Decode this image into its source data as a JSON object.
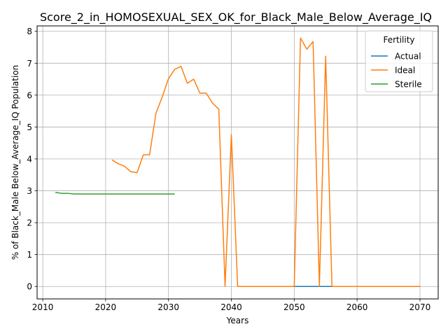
{
  "chart_data": {
    "type": "line",
    "title": "Score_2_in_HOMOSEXUAL_SEX_OK_for_Black_Male_Below_Average_IQ",
    "xlabel": "Years",
    "ylabel": "% of Black_Male Below_Average_IQ Population",
    "xlim": [
      2009.1,
      2072.9
    ],
    "ylim": [
      -0.39,
      8.17
    ],
    "x_ticks": [
      2010,
      2020,
      2030,
      2040,
      2050,
      2060,
      2070
    ],
    "x_tick_labels": [
      "2010",
      "2020",
      "2030",
      "2040",
      "2050",
      "2060",
      "2070"
    ],
    "y_ticks": [
      0,
      1,
      2,
      3,
      4,
      5,
      6,
      7,
      8
    ],
    "y_tick_labels": [
      "0",
      "1",
      "2",
      "3",
      "4",
      "5",
      "6",
      "7",
      "8"
    ],
    "grid": true,
    "legend": {
      "title": "Fertility",
      "placement": "top-right"
    },
    "series": [
      {
        "name": "Actual",
        "color": "#1f77b4",
        "x": [
          2048,
          2049,
          2050,
          2051,
          2052,
          2053,
          2054,
          2055,
          2056
        ],
        "y": [
          0,
          0,
          0,
          0,
          0,
          0,
          0,
          0,
          0
        ]
      },
      {
        "name": "Ideal",
        "color": "#ff7f0e",
        "x": [
          2021,
          2022,
          2023,
          2024,
          2025,
          2026,
          2027,
          2028,
          2029,
          2030,
          2031,
          2032,
          2033,
          2034,
          2035,
          2036,
          2037,
          2038,
          2039,
          2040,
          2041,
          2042,
          2043,
          2044,
          2045,
          2046,
          2047,
          2048,
          2049,
          2050,
          2051,
          2052,
          2053,
          2054,
          2055,
          2056,
          2057,
          2058,
          2059,
          2060,
          2061,
          2062,
          2063,
          2064,
          2065,
          2066,
          2067,
          2068,
          2069,
          2070
        ],
        "y": [
          3.97,
          3.85,
          3.77,
          3.6,
          3.57,
          4.13,
          4.13,
          5.43,
          5.94,
          6.52,
          6.81,
          6.9,
          6.37,
          6.5,
          6.06,
          6.06,
          5.75,
          5.56,
          0,
          4.76,
          0,
          0,
          0,
          0,
          0,
          0,
          0,
          0,
          0,
          0,
          7.79,
          7.44,
          7.68,
          0,
          7.22,
          0,
          0,
          0,
          0,
          0,
          0,
          0,
          0,
          0,
          0,
          0,
          0,
          0,
          0,
          0
        ]
      },
      {
        "name": "Sterile",
        "color": "#2ca02c",
        "x": [
          2012,
          2013,
          2014,
          2015,
          2016,
          2017,
          2018,
          2019,
          2020,
          2021,
          2022,
          2023,
          2024,
          2025,
          2026,
          2027,
          2028,
          2029,
          2030,
          2031
        ],
        "y": [
          2.95,
          2.92,
          2.92,
          2.9,
          2.9,
          2.9,
          2.9,
          2.9,
          2.9,
          2.9,
          2.9,
          2.9,
          2.9,
          2.9,
          2.9,
          2.9,
          2.9,
          2.9,
          2.9,
          2.9
        ]
      }
    ]
  }
}
